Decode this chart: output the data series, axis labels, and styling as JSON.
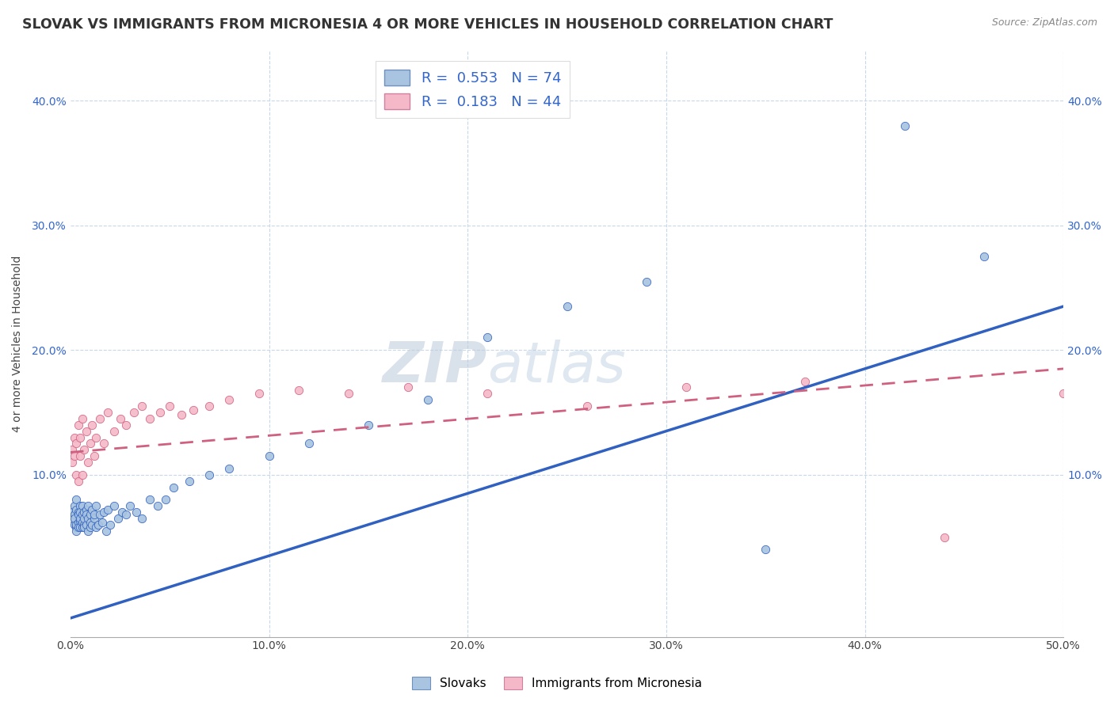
{
  "title": "SLOVAK VS IMMIGRANTS FROM MICRONESIA 4 OR MORE VEHICLES IN HOUSEHOLD CORRELATION CHART",
  "source_text": "Source: ZipAtlas.com",
  "ylabel": "4 or more Vehicles in Household",
  "xlim": [
    0.0,
    0.5
  ],
  "ylim": [
    -0.03,
    0.44
  ],
  "xtick_labels": [
    "0.0%",
    "10.0%",
    "20.0%",
    "30.0%",
    "40.0%",
    "50.0%"
  ],
  "xtick_values": [
    0.0,
    0.1,
    0.2,
    0.3,
    0.4,
    0.5
  ],
  "ytick_labels": [
    "10.0%",
    "20.0%",
    "30.0%",
    "40.0%"
  ],
  "ytick_values": [
    0.1,
    0.2,
    0.3,
    0.4
  ],
  "R_slovak": 0.553,
  "N_slovak": 74,
  "R_micronesia": 0.183,
  "N_micronesia": 44,
  "legend_label_slovak": "Slovaks",
  "legend_label_micronesia": "Immigrants from Micronesia",
  "color_slovak": "#a8c4e0",
  "color_micronesia": "#f4b8c8",
  "color_trend_slovak": "#3060c0",
  "color_trend_micronesia": "#d06080",
  "background_color": "#ffffff",
  "grid_color": "#c8d8e8",
  "watermark_color": "#d0dce8",
  "title_fontsize": 12.5,
  "axis_label_fontsize": 10,
  "tick_fontsize": 10,
  "legend_fontsize": 13,
  "slovak_scatter_x": [
    0.001,
    0.001,
    0.002,
    0.002,
    0.002,
    0.002,
    0.003,
    0.003,
    0.003,
    0.003,
    0.003,
    0.004,
    0.004,
    0.004,
    0.004,
    0.005,
    0.005,
    0.005,
    0.005,
    0.005,
    0.006,
    0.006,
    0.006,
    0.006,
    0.007,
    0.007,
    0.007,
    0.007,
    0.008,
    0.008,
    0.008,
    0.009,
    0.009,
    0.009,
    0.01,
    0.01,
    0.01,
    0.011,
    0.011,
    0.012,
    0.012,
    0.013,
    0.013,
    0.014,
    0.015,
    0.016,
    0.017,
    0.018,
    0.019,
    0.02,
    0.022,
    0.024,
    0.026,
    0.028,
    0.03,
    0.033,
    0.036,
    0.04,
    0.044,
    0.048,
    0.052,
    0.06,
    0.07,
    0.08,
    0.1,
    0.12,
    0.15,
    0.18,
    0.21,
    0.25,
    0.29,
    0.35,
    0.42,
    0.46
  ],
  "slovak_scatter_y": [
    0.065,
    0.07,
    0.068,
    0.06,
    0.075,
    0.065,
    0.058,
    0.072,
    0.06,
    0.08,
    0.055,
    0.07,
    0.062,
    0.068,
    0.058,
    0.075,
    0.063,
    0.07,
    0.058,
    0.065,
    0.068,
    0.058,
    0.062,
    0.075,
    0.06,
    0.07,
    0.065,
    0.058,
    0.072,
    0.06,
    0.068,
    0.055,
    0.065,
    0.075,
    0.058,
    0.068,
    0.062,
    0.072,
    0.06,
    0.065,
    0.068,
    0.058,
    0.075,
    0.06,
    0.068,
    0.062,
    0.07,
    0.055,
    0.072,
    0.06,
    0.075,
    0.065,
    0.07,
    0.068,
    0.075,
    0.07,
    0.065,
    0.08,
    0.075,
    0.08,
    0.09,
    0.095,
    0.1,
    0.105,
    0.115,
    0.125,
    0.14,
    0.16,
    0.21,
    0.235,
    0.255,
    0.04,
    0.38,
    0.275
  ],
  "micronesia_scatter_x": [
    0.001,
    0.001,
    0.002,
    0.002,
    0.003,
    0.003,
    0.004,
    0.004,
    0.005,
    0.005,
    0.006,
    0.006,
    0.007,
    0.008,
    0.009,
    0.01,
    0.011,
    0.012,
    0.013,
    0.015,
    0.017,
    0.019,
    0.022,
    0.025,
    0.028,
    0.032,
    0.036,
    0.04,
    0.045,
    0.05,
    0.056,
    0.062,
    0.07,
    0.08,
    0.095,
    0.115,
    0.14,
    0.17,
    0.21,
    0.26,
    0.31,
    0.37,
    0.44,
    0.5
  ],
  "micronesia_scatter_y": [
    0.12,
    0.11,
    0.13,
    0.115,
    0.125,
    0.1,
    0.14,
    0.095,
    0.13,
    0.115,
    0.145,
    0.1,
    0.12,
    0.135,
    0.11,
    0.125,
    0.14,
    0.115,
    0.13,
    0.145,
    0.125,
    0.15,
    0.135,
    0.145,
    0.14,
    0.15,
    0.155,
    0.145,
    0.15,
    0.155,
    0.148,
    0.152,
    0.155,
    0.16,
    0.165,
    0.168,
    0.165,
    0.17,
    0.165,
    0.155,
    0.17,
    0.175,
    0.05,
    0.165
  ],
  "trend_slovak_x0": 0.0,
  "trend_slovak_x1": 0.5,
  "trend_slovak_y0": -0.015,
  "trend_slovak_y1": 0.235,
  "trend_micronesia_x0": 0.0,
  "trend_micronesia_x1": 0.5,
  "trend_micronesia_y0": 0.118,
  "trend_micronesia_y1": 0.185
}
